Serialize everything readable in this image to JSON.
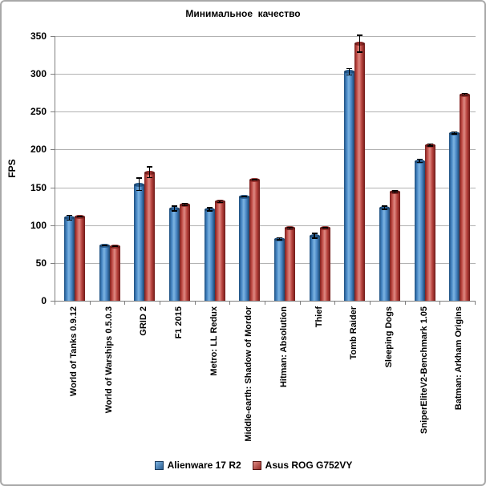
{
  "chart_data": {
    "type": "bar",
    "title": "Минимальное  качество",
    "ylabel": "FPS",
    "ylim": [
      0,
      350
    ],
    "ytick_step": 50,
    "yticks": [
      0,
      50,
      100,
      150,
      200,
      250,
      300,
      350
    ],
    "grid": true,
    "legend_position": "bottom",
    "error_bars": true,
    "categories": [
      "World of Tanks 0.9.12",
      "World of Warships 0.5.0.3",
      "GRID 2",
      "F1 2015",
      "Metro: LL Redux",
      "Middle-earth: Shadow of Mordor",
      "Hitman: Absolution",
      "Thief",
      "Tomb Raider",
      "Sleeping Dogs",
      "SniperEliteV2-Benchmark 1.05",
      "Batman: Arkham Origins"
    ],
    "series": [
      {
        "name": "Alienware 17 R2",
        "color": "#4f81bd",
        "values": [
          110,
          73,
          154,
          122,
          121,
          138,
          82,
          86,
          303,
          123,
          185,
          222
        ],
        "errors": [
          4,
          1,
          9,
          4,
          3,
          1,
          2,
          4,
          5,
          3,
          3,
          2
        ]
      },
      {
        "name": "Asus ROG G752VY",
        "color": "#c0504d",
        "values": [
          111,
          72,
          170,
          127,
          131,
          160,
          96,
          97,
          340,
          144,
          206,
          273
        ],
        "errors": [
          1,
          1,
          8,
          2,
          2,
          1,
          2,
          1,
          12,
          2,
          2,
          2
        ]
      }
    ]
  },
  "colors": {
    "gridline": "#b2b2b2",
    "axis": "#7f7f7f",
    "frame_border": "#a9a9a9",
    "text": "#000000"
  }
}
